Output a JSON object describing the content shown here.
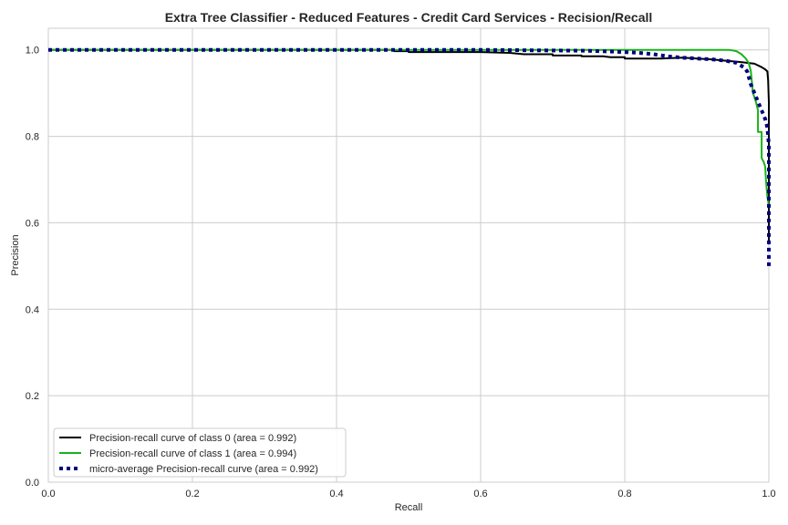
{
  "chart_data": {
    "type": "line",
    "title": "Extra Tree Classifier - Reduced Features - Credit Card Services - Recision/Recall",
    "xlabel": "Recall",
    "ylabel": "Precision",
    "xlim": [
      0.0,
      1.0
    ],
    "ylim": [
      0.0,
      1.05
    ],
    "xticks": [
      0.0,
      0.2,
      0.4,
      0.6,
      0.8,
      1.0
    ],
    "yticks": [
      0.0,
      0.2,
      0.4,
      0.6,
      0.8,
      1.0
    ],
    "xtick_labels": [
      "0.0",
      "0.2",
      "0.4",
      "0.6",
      "0.8",
      "1.0"
    ],
    "ytick_labels": [
      "0.0",
      "0.2",
      "0.4",
      "0.6",
      "0.8",
      "1.0"
    ],
    "grid": true,
    "legend_position": "lower-left",
    "series": [
      {
        "name": "Precision-recall curve of class 0 (area = 0.992)",
        "color": "#000000",
        "style": "solid",
        "points": [
          [
            0.0,
            1.0
          ],
          [
            0.48,
            1.0
          ],
          [
            0.48,
            0.997
          ],
          [
            0.5,
            0.997
          ],
          [
            0.5,
            0.995
          ],
          [
            0.6,
            0.995
          ],
          [
            0.64,
            0.993
          ],
          [
            0.66,
            0.99
          ],
          [
            0.7,
            0.99
          ],
          [
            0.7,
            0.987
          ],
          [
            0.74,
            0.987
          ],
          [
            0.74,
            0.985
          ],
          [
            0.77,
            0.985
          ],
          [
            0.78,
            0.983
          ],
          [
            0.8,
            0.983
          ],
          [
            0.8,
            0.98
          ],
          [
            0.85,
            0.98
          ],
          [
            0.88,
            0.982
          ],
          [
            0.9,
            0.98
          ],
          [
            0.92,
            0.978
          ],
          [
            0.94,
            0.975
          ],
          [
            0.96,
            0.972
          ],
          [
            0.98,
            0.968
          ],
          [
            0.99,
            0.96
          ],
          [
            0.995,
            0.955
          ],
          [
            0.998,
            0.95
          ],
          [
            0.999,
            0.93
          ],
          [
            1.0,
            0.88
          ],
          [
            1.0,
            0.55
          ]
        ]
      },
      {
        "name": "Precision-recall curve of class 1 (area = 0.994)",
        "color": "#19b219",
        "style": "solid",
        "points": [
          [
            0.0,
            1.0
          ],
          [
            0.945,
            1.0
          ],
          [
            0.955,
            0.997
          ],
          [
            0.962,
            0.99
          ],
          [
            0.968,
            0.98
          ],
          [
            0.972,
            0.97
          ],
          [
            0.975,
            0.95
          ],
          [
            0.978,
            0.9
          ],
          [
            0.982,
            0.88
          ],
          [
            0.985,
            0.86
          ],
          [
            0.985,
            0.81
          ],
          [
            0.99,
            0.81
          ],
          [
            0.99,
            0.75
          ],
          [
            0.993,
            0.74
          ],
          [
            0.995,
            0.73
          ],
          [
            0.996,
            0.7
          ],
          [
            0.998,
            0.66
          ],
          [
            1.0,
            0.64
          ]
        ]
      },
      {
        "name": "micro-average Precision-recall curve (area = 0.992)",
        "color": "#000080",
        "style": "dotted",
        "points": [
          [
            0.0,
            1.0
          ],
          [
            0.6,
            1.0
          ],
          [
            0.75,
            0.998
          ],
          [
            0.8,
            0.995
          ],
          [
            0.82,
            0.993
          ],
          [
            0.84,
            0.99
          ],
          [
            0.86,
            0.985
          ],
          [
            0.88,
            0.982
          ],
          [
            0.9,
            0.98
          ],
          [
            0.92,
            0.978
          ],
          [
            0.94,
            0.975
          ],
          [
            0.955,
            0.97
          ],
          [
            0.965,
            0.96
          ],
          [
            0.97,
            0.95
          ],
          [
            0.975,
            0.92
          ],
          [
            0.98,
            0.9
          ],
          [
            0.985,
            0.88
          ],
          [
            0.99,
            0.86
          ],
          [
            0.995,
            0.84
          ],
          [
            0.998,
            0.82
          ],
          [
            1.0,
            0.78
          ],
          [
            1.0,
            0.5
          ]
        ]
      }
    ]
  }
}
